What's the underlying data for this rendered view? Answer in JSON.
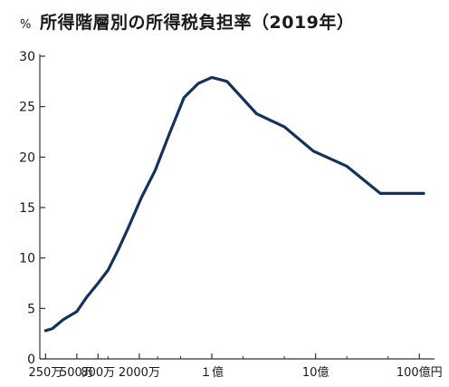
{
  "chart_data": {
    "type": "line",
    "title": "所得階層別の所得税負担率（2019年）",
    "unit_label": "%",
    "xlabel": "",
    "ylabel": "",
    "ylim": [
      0,
      30
    ],
    "y_ticks": [
      0,
      5,
      10,
      15,
      20,
      25,
      30
    ],
    "x_axis_scale": "log",
    "x_tick_labels": [
      "250万",
      "500万",
      "800万",
      "2000万",
      "１億",
      "10億",
      "100億円"
    ],
    "grid": false,
    "legend": "none",
    "line_color": "#14325a",
    "series": [
      {
        "points": [
          {
            "x": 250,
            "y": 2.8
          },
          {
            "x": 290,
            "y": 3.0
          },
          {
            "x": 370,
            "y": 3.9
          },
          {
            "x": 500,
            "y": 4.7
          },
          {
            "x": 620,
            "y": 6.1
          },
          {
            "x": 800,
            "y": 7.5
          },
          {
            "x": 1000,
            "y": 8.8
          },
          {
            "x": 1250,
            "y": 10.8
          },
          {
            "x": 1550,
            "y": 12.9
          },
          {
            "x": 2100,
            "y": 16.0
          },
          {
            "x": 2850,
            "y": 18.7
          },
          {
            "x": 3900,
            "y": 22.3
          },
          {
            "x": 5400,
            "y": 25.9
          },
          {
            "x": 7400,
            "y": 27.3
          },
          {
            "x": 10000,
            "y": 27.9
          },
          {
            "x": 14000,
            "y": 27.5
          },
          {
            "x": 27000,
            "y": 24.3
          },
          {
            "x": 50000,
            "y": 23.0
          },
          {
            "x": 95000,
            "y": 20.6
          },
          {
            "x": 200000,
            "y": 19.1
          },
          {
            "x": 420000,
            "y": 16.4
          },
          {
            "x": 1100000,
            "y": 16.4
          }
        ]
      }
    ]
  }
}
